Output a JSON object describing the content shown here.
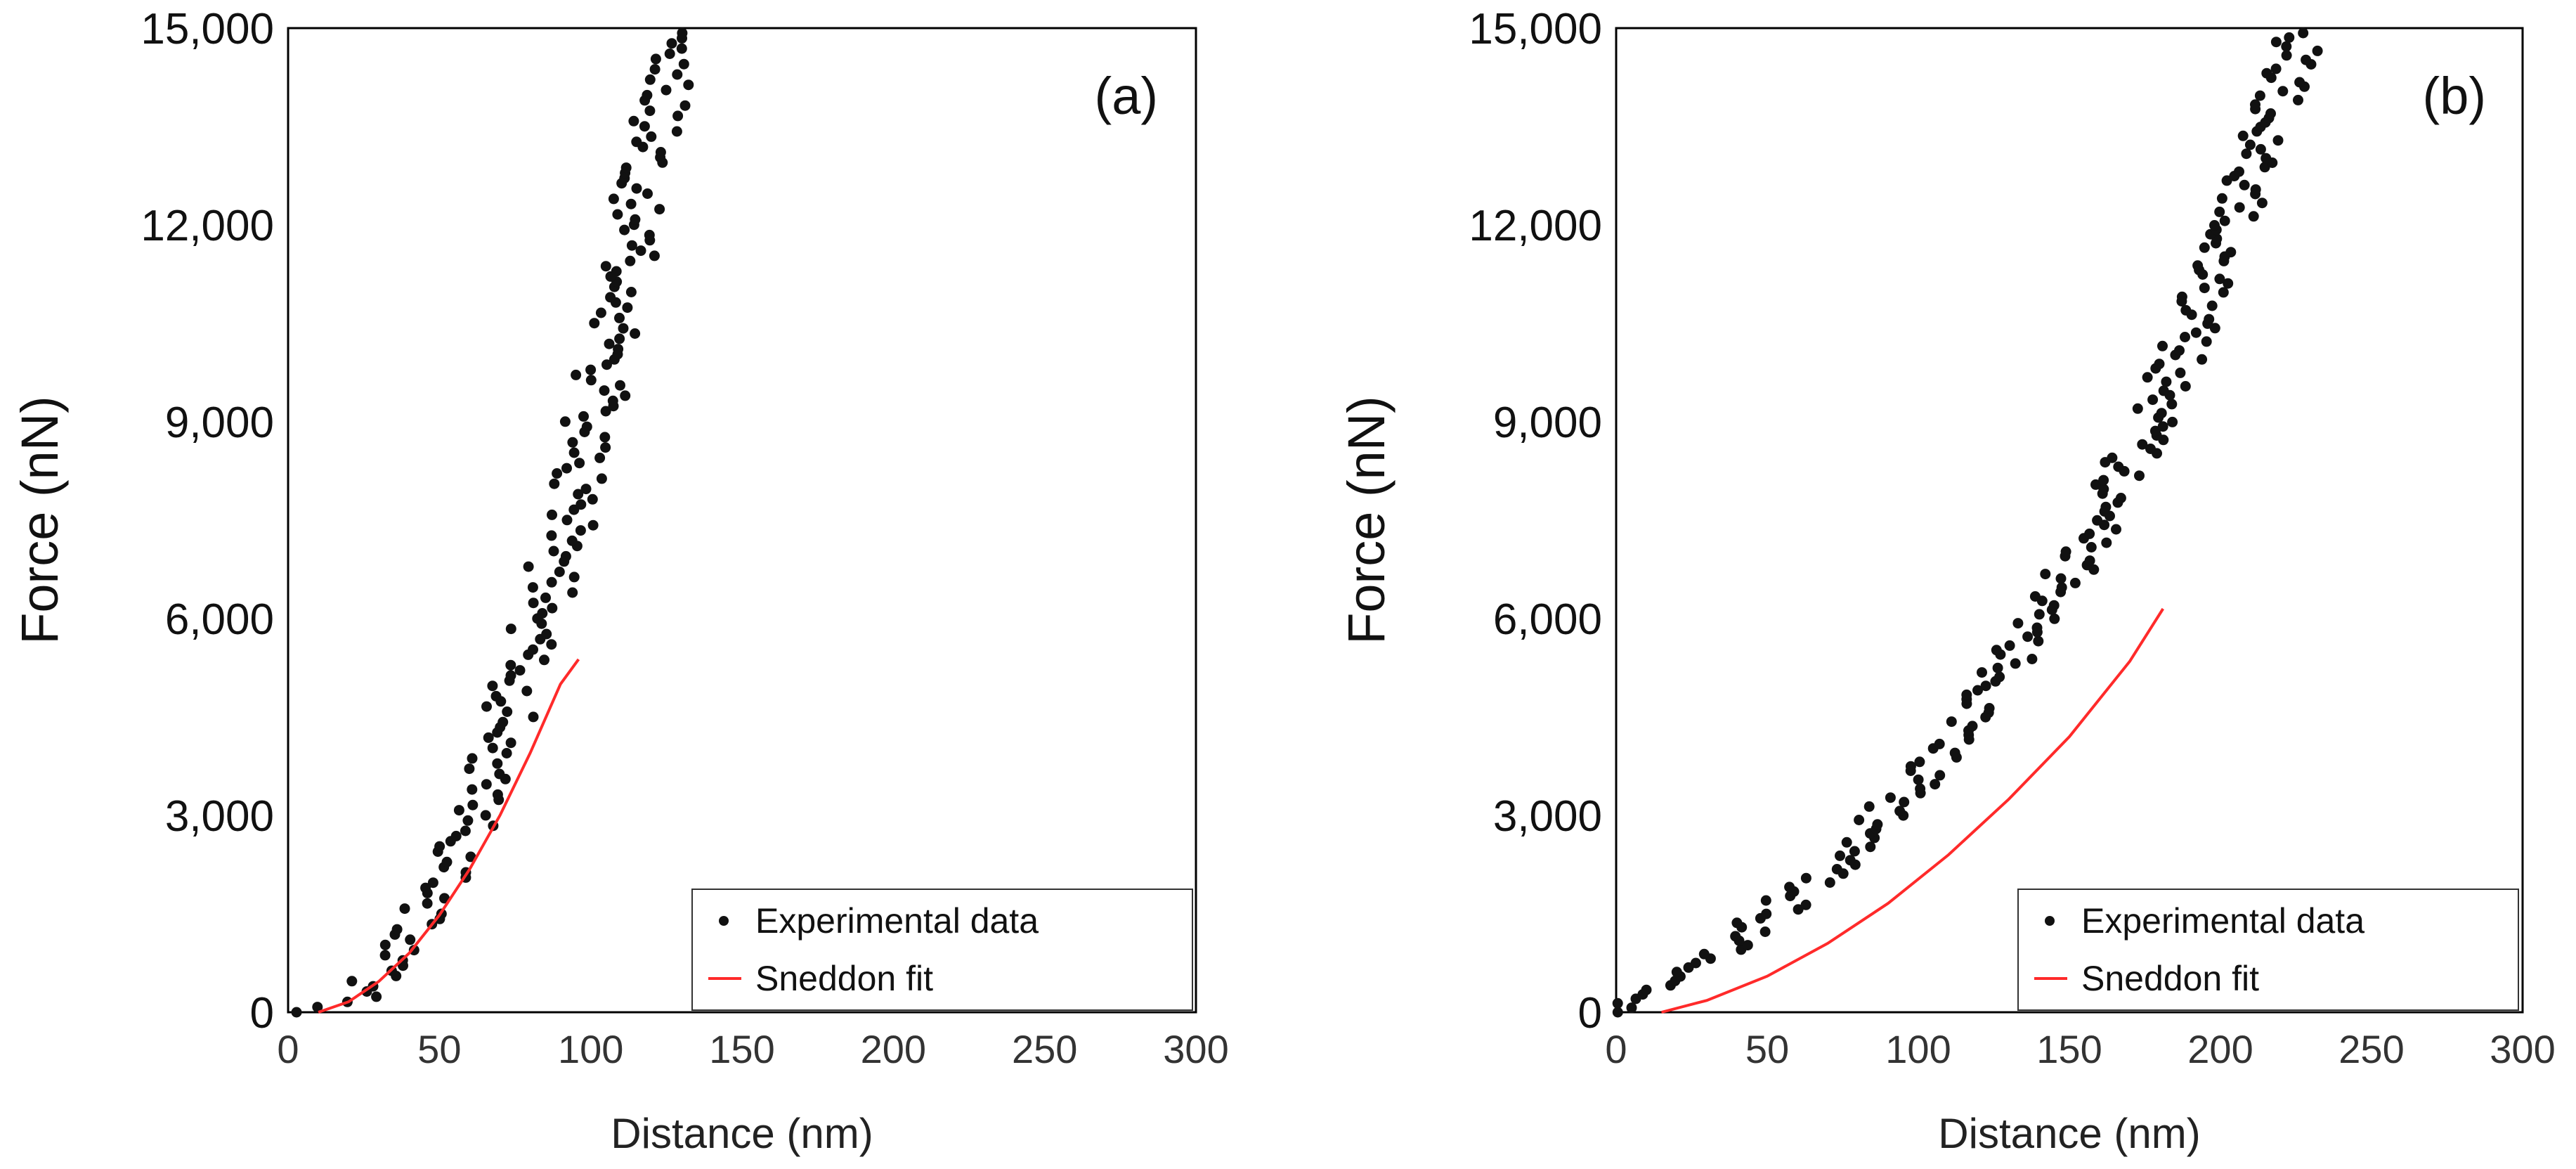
{
  "chart_data": [
    {
      "type": "scatter",
      "panel_label": "(a)",
      "xlabel": "Distance (nm)",
      "ylabel": "Force (nN)",
      "xlim": [
        0,
        300
      ],
      "ylim": [
        0,
        15000
      ],
      "xticks": [
        "0",
        "50",
        "100",
        "150",
        "200",
        "250",
        "300"
      ],
      "yticks": [
        "0",
        "3,000",
        "6,000",
        "9,000",
        "12,000",
        "15,000"
      ],
      "legend": {
        "placement": "bottom-right",
        "entries": [
          "Experimental data",
          "Sneddon fit"
        ]
      },
      "series": [
        {
          "name": "Experimental data",
          "style": "points",
          "color": "#111111",
          "model": {
            "form": "power",
            "offset": 3,
            "coef": 0.6,
            "exponent": 2.1,
            "x_end": 110,
            "points": 190,
            "spread_nm": 9
          }
        },
        {
          "name": "Sneddon fit",
          "style": "line",
          "color": "#ff2a2a",
          "x": [
            10,
            20,
            30,
            40,
            50,
            60,
            70,
            80,
            90,
            96
          ],
          "y": [
            0,
            160,
            470,
            900,
            1480,
            2180,
            3000,
            3950,
            5000,
            5380
          ]
        }
      ]
    },
    {
      "type": "scatter",
      "panel_label": "(b)",
      "xlabel": "Distance (nm)",
      "ylabel": "Force (nN)",
      "xlim": [
        0,
        300
      ],
      "ylim": [
        0,
        15000
      ],
      "xticks": [
        "0",
        "50",
        "100",
        "150",
        "200",
        "250",
        "300"
      ],
      "yticks": [
        "0",
        "3,000",
        "6,000",
        "9,000",
        "12,000",
        "15,000"
      ],
      "legend": {
        "placement": "bottom-right",
        "entries": [
          "Experimental data",
          "Sneddon fit"
        ]
      },
      "series": [
        {
          "name": "Experimental data",
          "style": "points",
          "color": "#111111",
          "model": {
            "form": "exponential",
            "a": 2800,
            "b": 0.00813,
            "d": 2750,
            "x_end": 205,
            "points": 220,
            "spread_nm": 8
          }
        },
        {
          "name": "Sneddon fit",
          "style": "line",
          "color": "#ff2a2a",
          "x": [
            15,
            30,
            50,
            70,
            90,
            110,
            130,
            150,
            170,
            181
          ],
          "y": [
            0,
            180,
            550,
            1050,
            1660,
            2400,
            3250,
            4200,
            5350,
            6150
          ]
        }
      ]
    }
  ]
}
